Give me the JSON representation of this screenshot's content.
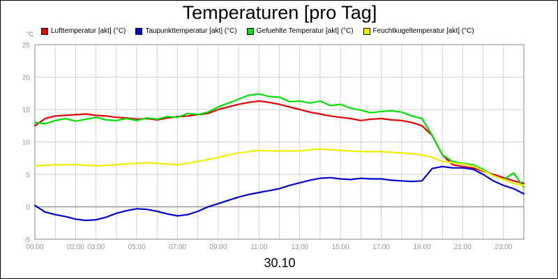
{
  "chart_data": {
    "type": "line",
    "title": "Temperaturen [pro Tag]",
    "ylabel": "°C",
    "xlabel": "30.10",
    "ylim": [
      -5,
      25
    ],
    "xlim": [
      0,
      24
    ],
    "yticks": [
      -5,
      0,
      5,
      10,
      15,
      20,
      25
    ],
    "ytick_labels": [
      "-5",
      "0",
      "5",
      "10",
      "15",
      "20",
      "25"
    ],
    "xticks": [
      0,
      2,
      3,
      5,
      7,
      9,
      11,
      13,
      15,
      17,
      19,
      21,
      23
    ],
    "xtick_labels": [
      "00:00",
      "02:00",
      "03:00",
      "05:00",
      "07:00",
      "09:00",
      "11:00",
      "13:00",
      "15:00",
      "17:00",
      "19:00",
      "21:00",
      "23:00"
    ],
    "grid": true,
    "legend_position": "top",
    "series": [
      {
        "name": "Lufttemperatur [akt] (°C)",
        "color": "#e00000",
        "x": [
          0,
          0.5,
          1,
          1.5,
          2,
          2.5,
          3,
          3.5,
          4,
          4.5,
          5,
          5.5,
          6,
          6.5,
          7,
          7.5,
          8,
          8.5,
          9,
          9.5,
          10,
          10.5,
          11,
          11.5,
          12,
          12.5,
          13,
          13.5,
          14,
          14.5,
          15,
          15.5,
          16,
          16.5,
          17,
          17.5,
          18,
          18.5,
          19,
          19.5,
          20,
          20.5,
          21,
          21.5,
          22,
          22.5,
          23,
          23.5,
          24
        ],
        "y": [
          12.5,
          13.6,
          14.0,
          14.1,
          14.2,
          14.3,
          14.1,
          14.0,
          13.8,
          13.7,
          13.5,
          13.6,
          13.4,
          13.7,
          13.9,
          14.0,
          14.2,
          14.4,
          15.0,
          15.4,
          15.8,
          16.1,
          16.3,
          16.1,
          15.8,
          15.4,
          15.0,
          14.6,
          14.3,
          14.0,
          13.8,
          13.6,
          13.3,
          13.5,
          13.6,
          13.4,
          13.3,
          13.0,
          12.5,
          11.0,
          8.0,
          6.5,
          6.2,
          6.0,
          5.5,
          5.0,
          4.5,
          4.0,
          3.6
        ]
      },
      {
        "name": "Taupunkttemperatur [akt] (°C)",
        "color": "#0000cc",
        "x": [
          0,
          0.5,
          1,
          1.5,
          2,
          2.5,
          3,
          3.5,
          4,
          4.5,
          5,
          5.5,
          6,
          6.5,
          7,
          7.5,
          8,
          8.5,
          9,
          9.5,
          10,
          10.5,
          11,
          11.5,
          12,
          12.5,
          13,
          13.5,
          14,
          14.5,
          15,
          15.5,
          16,
          16.5,
          17,
          17.5,
          18,
          18.5,
          19,
          19.5,
          20,
          20.5,
          21,
          21.5,
          22,
          22.5,
          23,
          23.5,
          24
        ],
        "y": [
          0.2,
          -0.8,
          -1.2,
          -1.5,
          -1.9,
          -2.1,
          -2.0,
          -1.6,
          -1.0,
          -0.6,
          -0.3,
          -0.4,
          -0.7,
          -1.1,
          -1.4,
          -1.2,
          -0.7,
          0.0,
          0.5,
          1.0,
          1.5,
          1.9,
          2.2,
          2.5,
          2.8,
          3.3,
          3.7,
          4.1,
          4.4,
          4.5,
          4.3,
          4.2,
          4.4,
          4.3,
          4.3,
          4.1,
          4.0,
          3.9,
          4.0,
          5.9,
          6.2,
          6.0,
          6.0,
          5.8,
          5.0,
          4.0,
          3.3,
          2.8,
          2.0
        ]
      },
      {
        "name": "Gefuehlte Temperatur [akt] (°C)",
        "color": "#00dd00",
        "x": [
          0,
          0.5,
          1,
          1.5,
          2,
          2.5,
          3,
          3.5,
          4,
          4.5,
          5,
          5.5,
          6,
          6.5,
          7,
          7.5,
          8,
          8.5,
          9,
          9.5,
          10,
          10.5,
          11,
          11.5,
          12,
          12.5,
          13,
          13.5,
          14,
          14.5,
          15,
          15.5,
          16,
          16.5,
          17,
          17.5,
          18,
          18.5,
          19,
          19.5,
          20,
          20.5,
          21,
          21.5,
          22,
          22.5,
          23,
          23.5,
          24
        ],
        "y": [
          13.0,
          12.8,
          13.3,
          13.6,
          13.2,
          13.5,
          13.8,
          13.4,
          13.3,
          13.6,
          13.3,
          13.7,
          13.5,
          13.9,
          13.8,
          14.4,
          14.2,
          14.6,
          15.4,
          16.0,
          16.6,
          17.2,
          17.4,
          17.0,
          16.9,
          16.2,
          16.3,
          16.0,
          16.3,
          15.6,
          15.8,
          15.2,
          14.9,
          14.5,
          14.7,
          14.8,
          14.6,
          14.0,
          13.6,
          11.0,
          8.0,
          7.0,
          6.7,
          6.5,
          5.8,
          4.8,
          4.2,
          5.2,
          3.0
        ]
      },
      {
        "name": "Feuchtkugeltemperatur [akt] (°C)",
        "color": "#eeee00",
        "x": [
          0,
          0.5,
          1,
          1.5,
          2,
          2.5,
          3,
          3.5,
          4,
          4.5,
          5,
          5.5,
          6,
          6.5,
          7,
          7.5,
          8,
          8.5,
          9,
          9.5,
          10,
          10.5,
          11,
          11.5,
          12,
          12.5,
          13,
          13.5,
          14,
          14.5,
          15,
          15.5,
          16,
          16.5,
          17,
          17.5,
          18,
          18.5,
          19,
          19.5,
          20,
          20.5,
          21,
          21.5,
          22,
          22.5,
          23,
          23.5,
          24
        ],
        "y": [
          6.3,
          6.4,
          6.5,
          6.5,
          6.5,
          6.4,
          6.3,
          6.4,
          6.5,
          6.6,
          6.7,
          6.8,
          6.7,
          6.6,
          6.5,
          6.7,
          7.0,
          7.3,
          7.6,
          8.0,
          8.3,
          8.5,
          8.7,
          8.6,
          8.6,
          8.6,
          8.6,
          8.8,
          8.9,
          8.8,
          8.7,
          8.6,
          8.5,
          8.5,
          8.5,
          8.4,
          8.3,
          8.2,
          8.0,
          7.6,
          7.0,
          6.8,
          6.6,
          6.3,
          5.6,
          4.8,
          4.2,
          3.6,
          3.3
        ]
      }
    ]
  }
}
